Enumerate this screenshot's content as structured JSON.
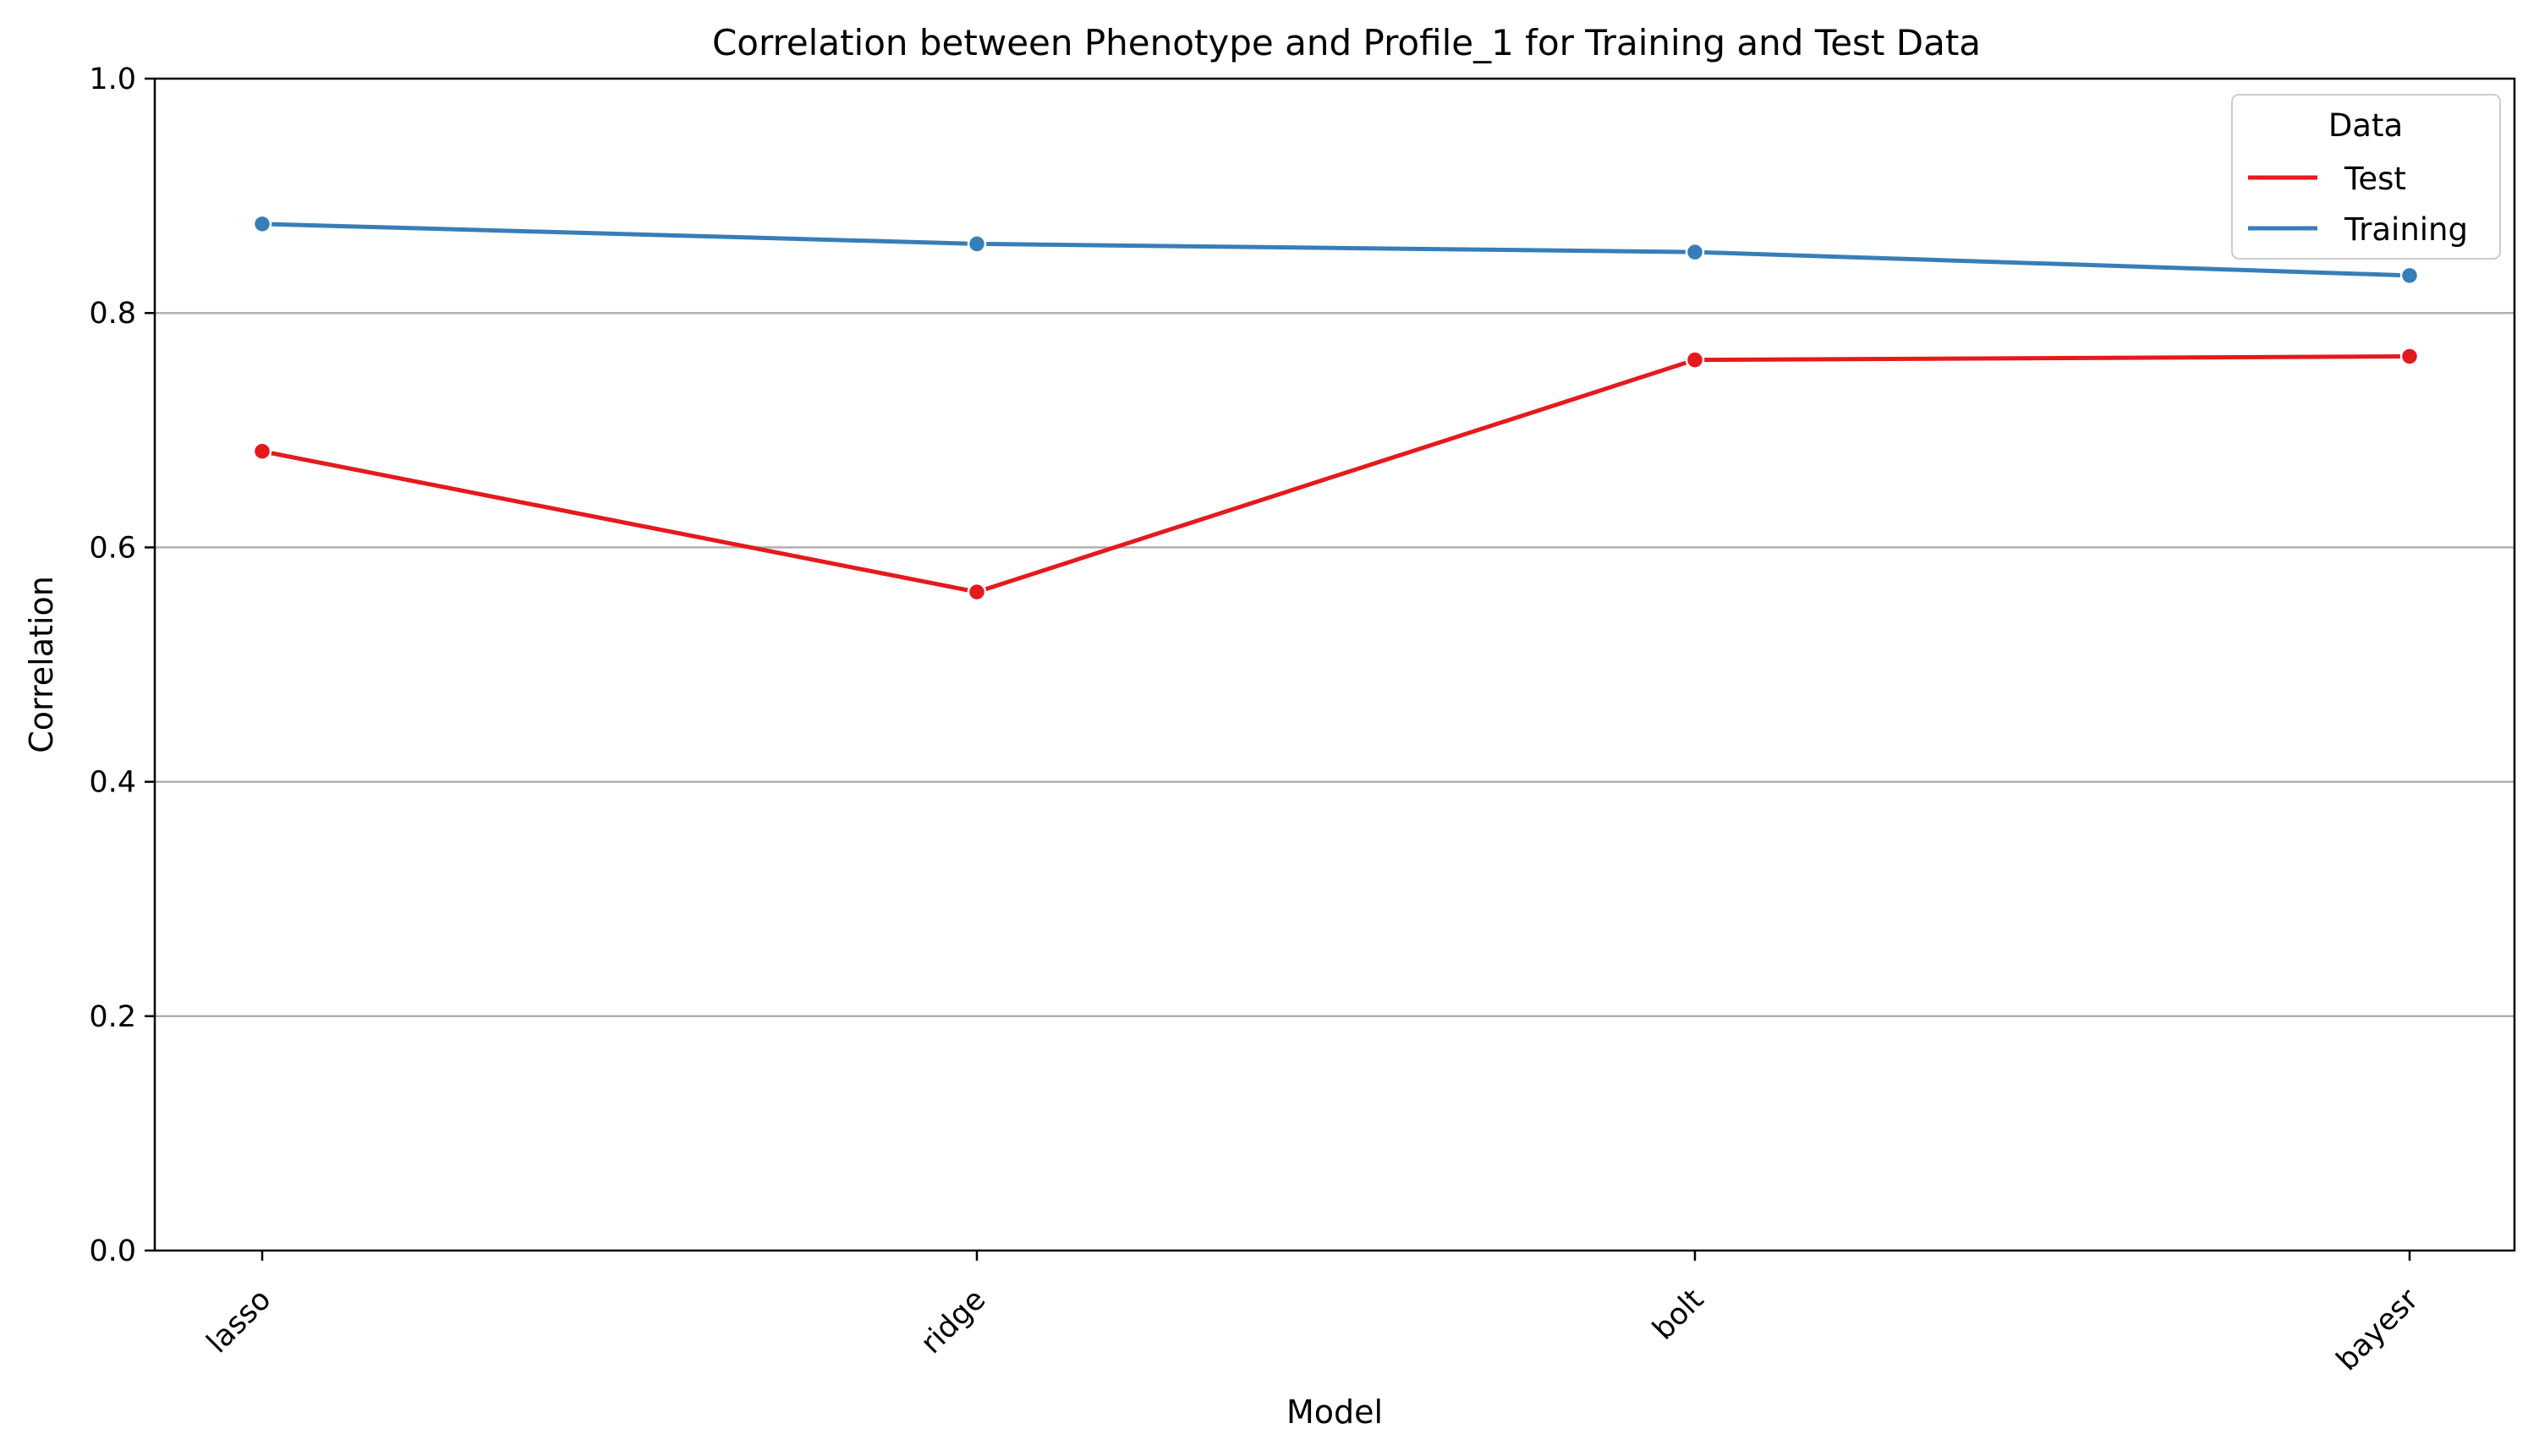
{
  "chart_data": {
    "type": "line",
    "title": "Correlation between Phenotype and Profile_1 for Training and Test Data",
    "xlabel": "Model",
    "ylabel": "Correlation",
    "categories": [
      "lasso",
      "ridge",
      "bolt",
      "bayesr"
    ],
    "ylim": [
      0,
      1.0
    ],
    "yticks": [
      "0.0",
      "0.2",
      "0.4",
      "0.6",
      "0.8",
      "1.0"
    ],
    "ytick_values": [
      0,
      0.2,
      0.4,
      0.6,
      0.8,
      1.0
    ],
    "grid": "horizontal",
    "legend": {
      "title": "Data",
      "placement": "top-right"
    },
    "series": [
      {
        "name": "Test",
        "color": "#e41a1c",
        "values": [
          0.682,
          0.562,
          0.76,
          0.763
        ]
      },
      {
        "name": "Training",
        "color": "#377eb8",
        "values": [
          0.876,
          0.859,
          0.852,
          0.832
        ]
      }
    ]
  }
}
